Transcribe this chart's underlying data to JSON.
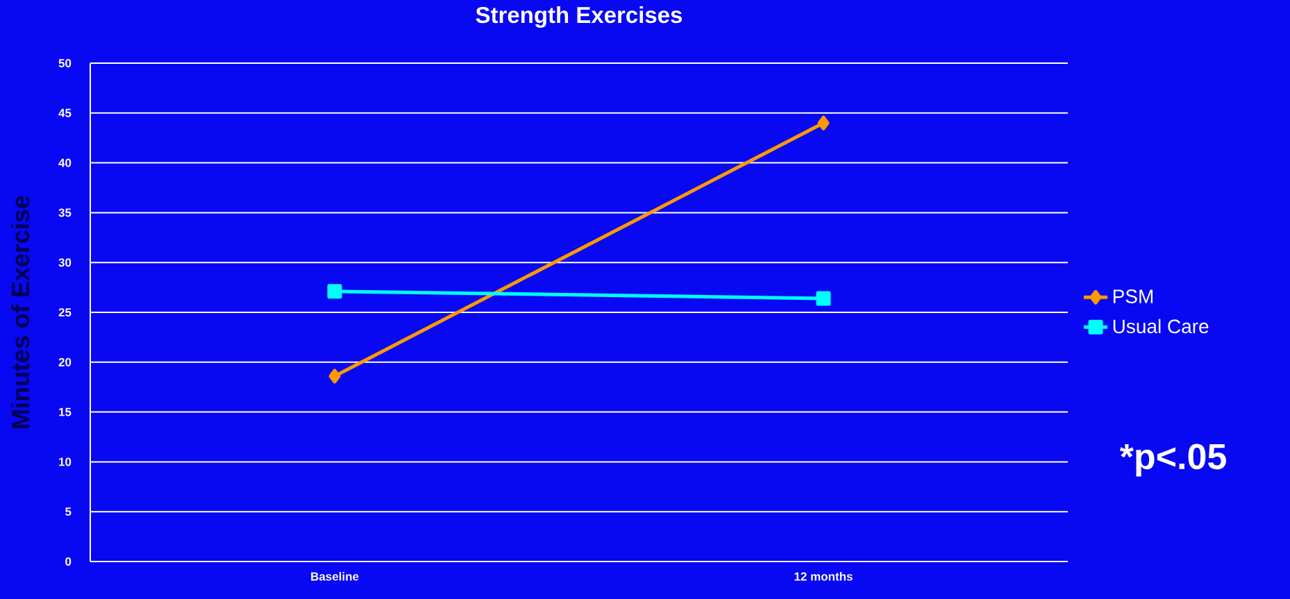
{
  "chart_data": {
    "type": "line",
    "title": "Strength Exercises",
    "ylabel": "Minutes of Exercise",
    "categories": [
      "Baseline",
      "12 months"
    ],
    "series": [
      {
        "name": "PSM",
        "color": "#ff9900",
        "marker": "diamond",
        "values": [
          18.6,
          44.0
        ]
      },
      {
        "name": "Usual Care",
        "color": "#00ffff",
        "marker": "square",
        "values": [
          27.1,
          26.4
        ]
      }
    ],
    "ylim": [
      0,
      50
    ],
    "yticks": [
      0,
      5,
      10,
      15,
      20,
      25,
      30,
      35,
      40,
      45,
      50
    ],
    "grid": "y",
    "legend": "right",
    "line_style": "solid",
    "annotations": [
      "*p<.05"
    ]
  }
}
